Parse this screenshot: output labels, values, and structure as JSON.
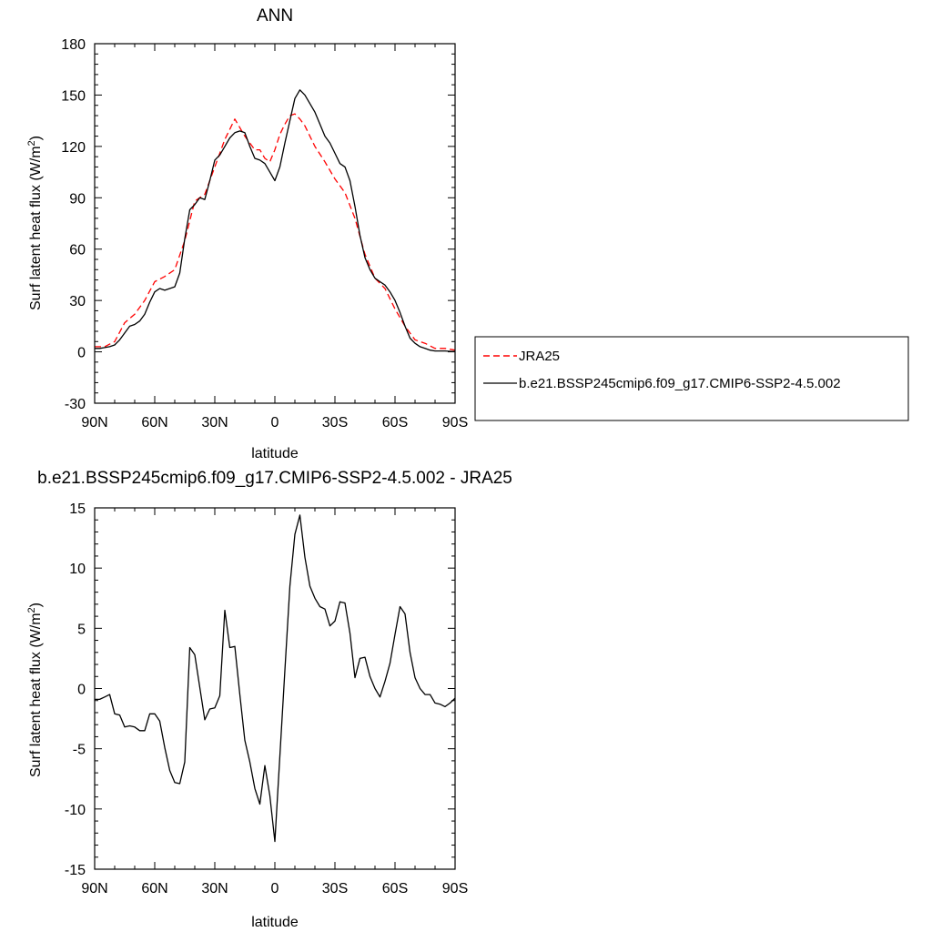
{
  "chart_data": [
    {
      "type": "line",
      "title": "ANN",
      "xlabel": "latitude",
      "ylabel": "Surf latent heat flux (W/m",
      "ylabel_sup": "2",
      "ylabel_close": ")",
      "xlim": [
        90,
        -90
      ],
      "ylim": [
        -30,
        180
      ],
      "xticks": [
        90,
        60,
        30,
        0,
        -30,
        -60,
        -90
      ],
      "xtick_labels": [
        "90N",
        "60N",
        "30N",
        "0",
        "30S",
        "60S",
        "90S"
      ],
      "yticks": [
        -30,
        0,
        30,
        60,
        90,
        120,
        150,
        180
      ],
      "ytick_labels": [
        "-30",
        "0",
        "30",
        "60",
        "90",
        "120",
        "150",
        "180"
      ],
      "legend": {
        "placement": "right",
        "entries": [
          "JRA25",
          "b.e21.BSSP245cmip6.f09_g17.CMIP6-SSP2-4.5.002"
        ]
      },
      "series": [
        {
          "name": "JRA25",
          "color": "#ff0000",
          "style": "dashed",
          "x": [
            90,
            85,
            80,
            75,
            70,
            65,
            60,
            55,
            50,
            45,
            40,
            35,
            30,
            25,
            20,
            15,
            12.5,
            10,
            7.5,
            5,
            2.5,
            0,
            -2.5,
            -5,
            -7.5,
            -10,
            -12.5,
            -15,
            -20,
            -25,
            -30,
            -35,
            -40,
            -45,
            -50,
            -55,
            -60,
            -65,
            -70,
            -75,
            -80,
            -85,
            -90
          ],
          "y": [
            3,
            3,
            6,
            17,
            22,
            30,
            41,
            44,
            48,
            65,
            88,
            92,
            108,
            124,
            136,
            126,
            122,
            118,
            118,
            113,
            111,
            118,
            127,
            133,
            138,
            139,
            136,
            132,
            120,
            111,
            101,
            93,
            78,
            57,
            43,
            37,
            25,
            15,
            7,
            5,
            2,
            2,
            1
          ]
        },
        {
          "name": "b.e21.BSSP245cmip6.f09_g17.CMIP6-SSP2-4.5.002",
          "color": "#000000",
          "style": "solid",
          "x": [
            90,
            87.5,
            85,
            82.5,
            80,
            77.5,
            75,
            72.5,
            70,
            67.5,
            65,
            62.5,
            60,
            57.5,
            55,
            52.5,
            50,
            47.5,
            45,
            42.5,
            40,
            37.5,
            35,
            32.5,
            30,
            27.5,
            25,
            22.5,
            20,
            17.5,
            15,
            12.5,
            10,
            7.5,
            5,
            2.5,
            0,
            -2.5,
            -5,
            -7.5,
            -10,
            -12.5,
            -15,
            -17.5,
            -20,
            -22.5,
            -25,
            -27.5,
            -30,
            -32.5,
            -35,
            -37.5,
            -40,
            -42.5,
            -45,
            -47.5,
            -50,
            -52.5,
            -55,
            -57.5,
            -60,
            -62.5,
            -65,
            -67.5,
            -70,
            -72.5,
            -75,
            -77.5,
            -80,
            -82.5,
            -85,
            -87.5,
            -90
          ],
          "y": [
            2,
            2,
            2.5,
            3,
            4,
            7,
            11,
            15,
            16,
            18,
            22,
            29,
            35,
            37,
            36,
            37,
            38,
            46,
            66,
            83,
            86,
            90,
            89,
            100,
            112,
            115,
            120,
            125,
            128,
            129,
            128,
            120,
            113,
            112,
            110,
            105,
            100,
            108,
            122,
            135,
            148,
            153,
            150,
            145,
            140,
            133,
            126,
            122,
            116,
            110,
            108,
            100,
            85,
            68,
            55,
            48,
            43,
            41,
            39,
            35,
            30,
            23,
            15,
            8,
            5,
            3,
            2,
            1,
            0.5,
            0.5,
            0.5,
            0.3,
            0.2
          ]
        }
      ]
    },
    {
      "type": "line",
      "title": "b.e21.BSSP245cmip6.f09_g17.CMIP6-SSP2-4.5.002 - JRA25",
      "xlabel": "latitude",
      "ylabel": "Surf latent heat flux (W/m",
      "ylabel_sup": "2",
      "ylabel_close": ")",
      "xlim": [
        90,
        -90
      ],
      "ylim": [
        -15,
        15
      ],
      "xticks": [
        90,
        60,
        30,
        0,
        -30,
        -60,
        -90
      ],
      "xtick_labels": [
        "90N",
        "60N",
        "30N",
        "0",
        "30S",
        "60S",
        "90S"
      ],
      "yticks": [
        -15,
        -10,
        -5,
        0,
        5,
        10,
        15
      ],
      "ytick_labels": [
        "-15",
        "-10",
        "-5",
        "0",
        "5",
        "10",
        "15"
      ],
      "series": [
        {
          "color": "#000000",
          "style": "solid",
          "x": [
            90,
            87.5,
            85,
            82.5,
            80,
            77.5,
            75,
            72.5,
            70,
            67.5,
            65,
            62.5,
            60,
            57.5,
            55,
            52.5,
            50,
            47.5,
            45,
            42.5,
            40,
            37.5,
            35,
            32.5,
            30,
            27.5,
            25,
            22.5,
            20,
            17.5,
            15,
            12.5,
            10,
            7.5,
            5,
            2.5,
            0,
            -2.5,
            -5,
            -7.5,
            -10,
            -12.5,
            -15,
            -17.5,
            -20,
            -22.5,
            -25,
            -27.5,
            -30,
            -32.5,
            -35,
            -37.5,
            -40,
            -42.5,
            -45,
            -47.5,
            -50,
            -52.5,
            -55,
            -57.5,
            -60,
            -62.5,
            -65,
            -67.5,
            -70,
            -72.5,
            -75,
            -77.5,
            -80,
            -82.5,
            -85,
            -87.5,
            -90
          ],
          "y": [
            -0.9,
            -0.9,
            -0.7,
            -0.5,
            -2.1,
            -2.2,
            -3.2,
            -3.1,
            -3.2,
            -3.5,
            -3.5,
            -2.1,
            -2.1,
            -2.7,
            -4.9,
            -6.8,
            -7.8,
            -7.9,
            -6.1,
            3.4,
            2.8,
            0.1,
            -2.6,
            -1.7,
            -1.6,
            -0.6,
            6.5,
            3.4,
            3.5,
            -0.5,
            -4.3,
            -6.1,
            -8.3,
            -9.6,
            -6.4,
            -8.9,
            -12.7,
            -5.6,
            1.5,
            8.5,
            12.8,
            14.4,
            10.9,
            8.5,
            7.5,
            6.8,
            6.6,
            5.2,
            5.6,
            7.2,
            7.1,
            4.6,
            0.9,
            2.5,
            2.6,
            1.0,
            0.0,
            -0.7,
            0.6,
            2.1,
            4.5,
            6.8,
            6.2,
            3.0,
            0.9,
            0.0,
            -0.5,
            -0.5,
            -1.2,
            -1.3,
            -1.5,
            -1.2,
            -0.8
          ]
        }
      ]
    }
  ]
}
